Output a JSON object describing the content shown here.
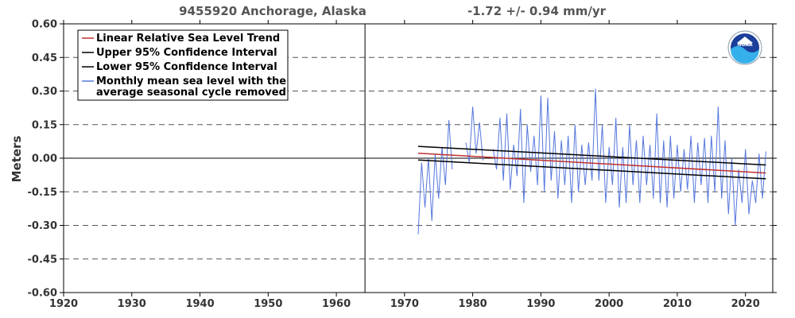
{
  "chart_data": {
    "type": "line",
    "title": "9455920 Anchorage, Alaska",
    "trend_label": "-1.72 +/-  0.94 mm/yr",
    "ylabel": "Meters",
    "xlabel": "",
    "xlim": [
      1920,
      2024
    ],
    "ylim": [
      -0.6,
      0.6
    ],
    "x_ticks": [
      "1920",
      "1930",
      "1940",
      "1950",
      "1960",
      "1970",
      "1980",
      "1990",
      "2000",
      "2010",
      "2020"
    ],
    "y_ticks": [
      "0.60",
      "0.45",
      "0.30",
      "0.15",
      "0.00",
      "-0.15",
      "-0.30",
      "-0.45",
      "-0.60"
    ],
    "grid": "horizontal dashed",
    "vertical_marker_x": 1964.2,
    "legend": {
      "placement": "top-left",
      "entries": [
        {
          "label": "Linear Relative Sea Level Trend",
          "color": "#c0302e"
        },
        {
          "label": "Upper 95% Confidence Interval",
          "color": "#000000"
        },
        {
          "label": "Lower 95% Confidence Interval",
          "color": "#000000"
        },
        {
          "label": "Monthly mean sea level with the",
          "label2": "average seasonal cycle removed",
          "color": "#5577dd"
        }
      ]
    },
    "series": [
      {
        "name": "Linear Relative Sea Level Trend",
        "color": "#c0302e",
        "x": [
          1972.0,
          2023.0
        ],
        "y": [
          0.022,
          -0.066
        ]
      },
      {
        "name": "Upper 95% Confidence Interval",
        "color": "#000000",
        "x": [
          1972.0,
          2023.0
        ],
        "y": [
          0.053,
          -0.03
        ]
      },
      {
        "name": "Lower 95% Confidence Interval",
        "color": "#000000",
        "x": [
          1972.0,
          2023.0
        ],
        "y": [
          -0.008,
          -0.092
        ]
      },
      {
        "name": "Monthly mean sea level with the average seasonal cycle removed",
        "color": "#5577dd",
        "x": [
          1972.0,
          1972.5,
          1973.0,
          1973.5,
          1974.0,
          1974.5,
          1975.0,
          1975.5,
          1976.0,
          1976.5,
          1977.0,
          1977.5,
          1978.0,
          1978.5,
          1979.0,
          1979.5,
          1980.0,
          1980.5,
          1981.0,
          1981.5,
          1982.0,
          1982.5,
          1983.0,
          1983.5,
          1984.0,
          1984.5,
          1985.0,
          1985.5,
          1986.0,
          1986.5,
          1987.0,
          1987.5,
          1988.0,
          1988.5,
          1989.0,
          1989.5,
          1990.0,
          1990.5,
          1991.0,
          1991.5,
          1992.0,
          1992.5,
          1993.0,
          1993.5,
          1994.0,
          1994.5,
          1995.0,
          1995.5,
          1996.0,
          1996.5,
          1997.0,
          1997.5,
          1998.0,
          1998.5,
          1999.0,
          1999.5,
          2000.0,
          2000.5,
          2001.0,
          2001.5,
          2002.0,
          2002.5,
          2003.0,
          2003.5,
          2004.0,
          2004.5,
          2005.0,
          2005.5,
          2006.0,
          2006.5,
          2007.0,
          2007.5,
          2008.0,
          2008.5,
          2009.0,
          2009.5,
          2010.0,
          2010.5,
          2011.0,
          2011.5,
          2012.0,
          2012.5,
          2013.0,
          2013.5,
          2014.0,
          2014.5,
          2015.0,
          2015.5,
          2016.0,
          2016.5,
          2017.0,
          2017.5,
          2018.0,
          2018.5,
          2019.0,
          2019.5,
          2020.0,
          2020.5,
          2021.0,
          2021.5,
          2022.0,
          2022.5,
          2023.0
        ],
        "y": [
          -0.34,
          -0.02,
          -0.22,
          0.0,
          -0.28,
          0.02,
          -0.18,
          0.05,
          -0.12,
          0.17,
          -0.05,
          null,
          null,
          null,
          0.07,
          -0.02,
          0.23,
          0.02,
          0.16,
          -0.01,
          null,
          null,
          0.04,
          -0.05,
          0.18,
          -0.1,
          0.2,
          -0.14,
          0.06,
          -0.08,
          0.22,
          -0.2,
          0.15,
          -0.06,
          0.1,
          -0.12,
          0.28,
          -0.15,
          0.27,
          -0.1,
          0.12,
          -0.18,
          0.08,
          -0.12,
          0.1,
          -0.2,
          0.15,
          -0.15,
          0.06,
          -0.12,
          0.07,
          -0.1,
          0.31,
          -0.1,
          0.15,
          -0.2,
          0.05,
          -0.12,
          0.18,
          -0.22,
          0.05,
          -0.2,
          0.15,
          -0.12,
          0.08,
          -0.2,
          0.1,
          -0.12,
          0.06,
          -0.18,
          0.2,
          -0.2,
          0.08,
          -0.22,
          0.1,
          -0.18,
          0.06,
          -0.15,
          0.04,
          -0.14,
          0.1,
          -0.2,
          0.07,
          -0.12,
          0.09,
          -0.2,
          0.1,
          -0.15,
          0.23,
          -0.18,
          0.08,
          -0.25,
          0.0,
          -0.3,
          -0.05,
          -0.2,
          0.04,
          -0.25,
          -0.1,
          -0.2,
          0.02,
          -0.18,
          0.03
        ]
      }
    ]
  }
}
